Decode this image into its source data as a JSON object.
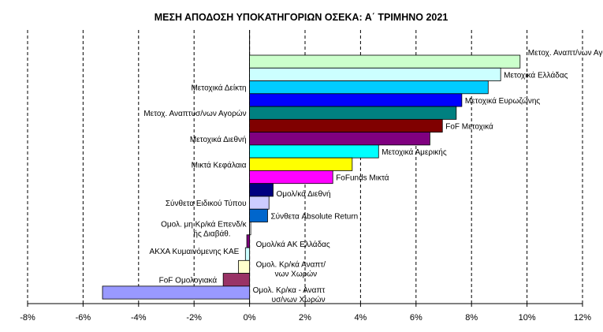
{
  "chart_data": {
    "type": "bar",
    "orientation": "horizontal",
    "title": "ΜΕΣΗ ΑΠΟΔΟΣΗ ΥΠΟΚΑΤΗΓΟΡΙΩΝ  ΟΣΕΚΑ:  Α΄ ΤΡΙΜΗΝΟ 2021",
    "xlabel": "",
    "ylabel": "",
    "xlim": [
      -8,
      12
    ],
    "x_ticks": [
      "-8%",
      "-6%",
      "-4%",
      "-2%",
      "0%",
      "2%",
      "4%",
      "6%",
      "8%",
      "10%",
      "12%"
    ],
    "x_tick_values": [
      -8,
      -6,
      -4,
      -2,
      0,
      2,
      4,
      6,
      8,
      10,
      12
    ],
    "grid": "vertical dashed",
    "legend": "none",
    "unit": "%",
    "categories": [
      "Μετοχ. Αναπτ/νων Αγορών",
      "Μετοχικά Ελλάδας",
      "Μετοχικά Δείκτη",
      "Μετοχικά Ευρωζώνης",
      "Μετοχ. Αναπτυσ/νων Αγορών",
      "FoF Μετοχικά",
      "Μετοχικά Διεθνή",
      "Μετοχικά Αμερικής",
      "Μικτά Κεφάλαια",
      "FoFunds Μικτά",
      "Ομολ/κά Διεθνή",
      "Σύνθετα Ειδικού Τύπου",
      "Σύνθετα Absolute Return",
      "Ομολ. μη Κρ/κά Επενδ/κής Διαβάθ.",
      "Ομολ/κά ΑΚ Ελλάδας",
      "ΑΚΧΑ Κυμαινόμενης ΚΑΕ",
      "Ομολ. Κρ/κά Αναπτ/νων Χωρών",
      "FoF Ομολογιακά",
      "Ομολ. Κρ/κα - Αναπτυσ/νων Χωρών"
    ],
    "values": [
      9.75,
      9.05,
      8.6,
      7.65,
      7.45,
      6.95,
      6.5,
      4.65,
      3.7,
      3.0,
      0.85,
      0.7,
      0.65,
      0.03,
      -0.1,
      -0.15,
      -0.4,
      -0.95,
      -5.3
    ],
    "colors": [
      "#CCFFCC",
      "#CCFFFF",
      "#00CCFF",
      "#0000FF",
      "#008080",
      "#800000",
      "#800080",
      "#00FFFF",
      "#FFFF00",
      "#FF00FF",
      "#000080",
      "#CCCCFF",
      "#0066CC",
      "#FFFFFF",
      "#800080",
      "#CCFFFF",
      "#FFFFCC",
      "#993366",
      "#9999FF"
    ]
  }
}
